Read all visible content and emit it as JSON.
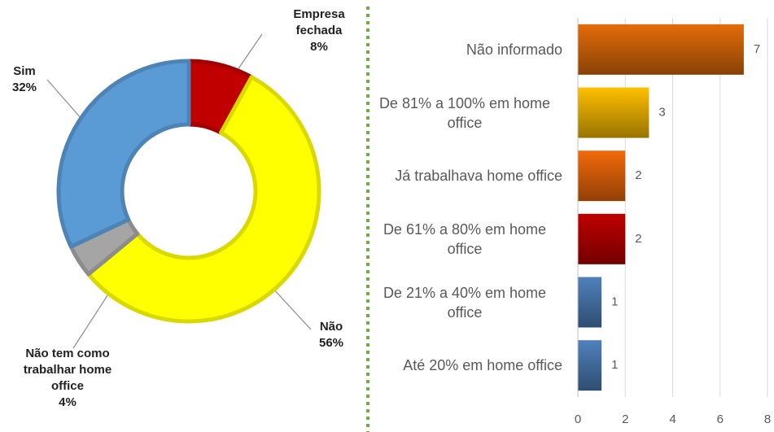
{
  "chart_data": [
    {
      "type": "donut",
      "categories": [
        "Empresa fechada",
        "Não",
        "Não tem como trabalhar home office",
        "Sim"
      ],
      "values": [
        8,
        56,
        4,
        32
      ],
      "value_labels": [
        "8%",
        "56%",
        "4%",
        "32%"
      ],
      "colors": [
        "#c00000",
        "#ffff00",
        "#a5a5a5",
        "#5b9bd5"
      ]
    },
    {
      "type": "bar",
      "orientation": "horizontal",
      "categories": [
        "Não informado",
        "De 81% a 100% em home office",
        "Já trabalhava home office",
        "De 61% a 80% em home office",
        "De 21% a 40% em home office",
        "Até 20% em home office"
      ],
      "values": [
        7,
        3,
        2,
        2,
        1,
        1
      ],
      "colors": [
        "#e46c0a",
        "#ffc000",
        "#f26a0a",
        "#c00000",
        "#4f81bd",
        "#4f81bd"
      ],
      "xlim": [
        0,
        8
      ],
      "xticks": [
        0,
        2,
        4,
        6,
        8
      ],
      "grid": true
    }
  ]
}
